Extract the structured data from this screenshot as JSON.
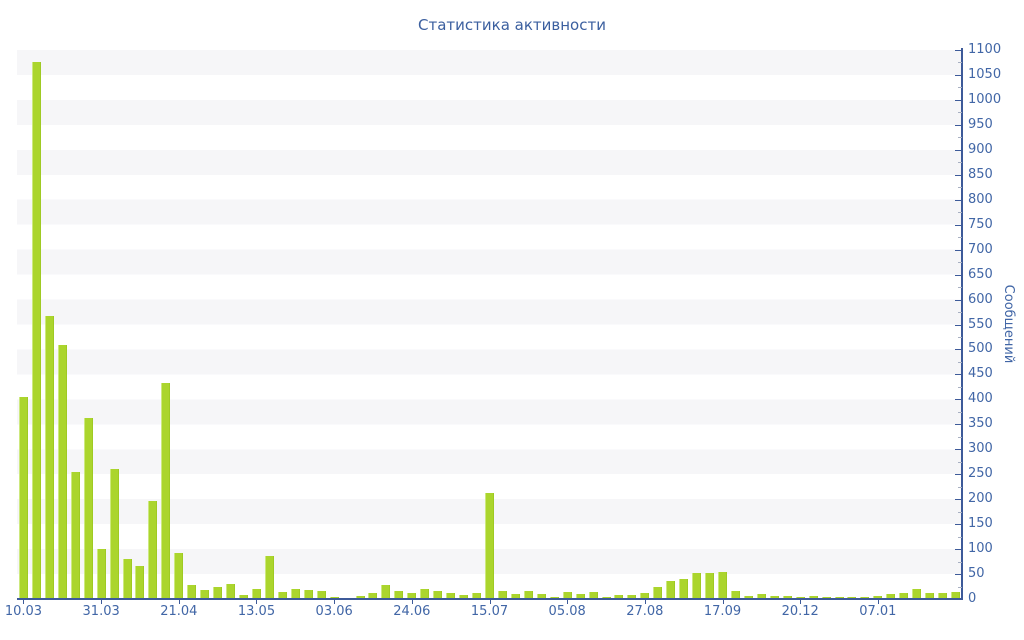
{
  "title": "Статистика активности",
  "chart_data": {
    "type": "bar",
    "title": "Статистика активности",
    "xlabel": "",
    "ylabel": "Сообщений",
    "ylim": [
      0,
      1100
    ],
    "y_tick_step": 50,
    "y_minor_tick_step": 25,
    "legend": "none",
    "grid": "alternating horizontal 50-unit bands",
    "bar_count": 73,
    "values": [
      405,
      1075,
      568,
      508,
      255,
      362,
      101,
      260,
      81,
      67,
      197,
      433,
      93,
      28,
      18,
      24,
      31,
      8,
      20,
      87,
      15,
      21,
      18,
      16,
      4,
      2,
      6,
      13,
      28,
      17,
      13,
      20,
      17,
      12,
      8,
      12,
      213,
      16,
      10,
      16,
      10,
      5,
      14,
      10,
      15,
      5,
      8,
      8,
      12,
      25,
      36,
      41,
      52,
      52,
      55,
      16,
      6,
      10,
      6,
      7,
      4,
      6,
      4,
      4,
      5,
      4,
      6,
      11,
      13,
      20,
      13,
      13,
      14
    ],
    "x_tick_labels": [
      "10.03",
      "31.03",
      "21.04",
      "13.05",
      "03.06",
      "24.06",
      "15.07",
      "05.08",
      "27.08",
      "17.09",
      "20.12",
      "07.01"
    ],
    "x_tick_bar_indices": [
      0,
      6,
      12,
      18,
      24,
      30,
      36,
      42,
      48,
      54,
      60,
      66
    ]
  },
  "colors": {
    "bar_fill": "#abd52d",
    "bar_highlight": "#cde97f",
    "bar_shadow": "#9fca23",
    "axis": "#3d5a99",
    "tick_label": "#4166a6",
    "title_text": "#3b5f9f",
    "stripe": "#f6f6f8",
    "background": "#ffffff",
    "minor_tick": "#a8b0c2"
  }
}
